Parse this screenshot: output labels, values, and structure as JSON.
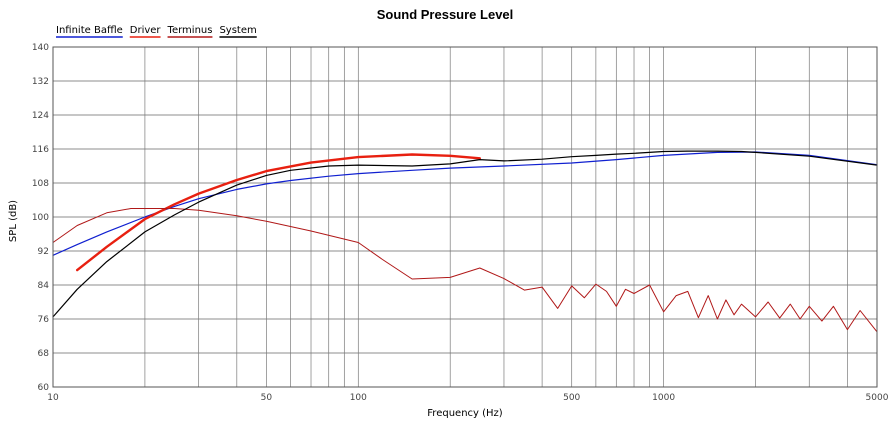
{
  "chart_data": {
    "type": "line",
    "title": "Sound Pressure Level",
    "xlabel": "Frequency (Hz)",
    "ylabel": "SPL (dB)",
    "x_scale": "log",
    "xlim": [
      10,
      5000
    ],
    "ylim": [
      60,
      140
    ],
    "grid": true,
    "legend_position": "top-left",
    "x_tick_labels": [
      "10",
      "50",
      "100",
      "500",
      "1000",
      "5000"
    ],
    "x_ticks": [
      10,
      50,
      100,
      500,
      1000,
      5000
    ],
    "x_grid": [
      20,
      30,
      40,
      50,
      60,
      70,
      80,
      90,
      100,
      200,
      300,
      400,
      500,
      600,
      700,
      800,
      900,
      1000,
      2000,
      3000,
      4000
    ],
    "y_ticks": [
      60,
      68,
      76,
      84,
      92,
      100,
      108,
      116,
      124,
      132,
      140
    ],
    "series": [
      {
        "name": "Infinite Baffle",
        "color": "#1020d0",
        "x": [
          10,
          12,
          15,
          20,
          25,
          30,
          40,
          50,
          60,
          80,
          100,
          150,
          200,
          300,
          500,
          700,
          1000,
          1500,
          2000,
          3000,
          5000
        ],
        "y": [
          91,
          93.5,
          96.5,
          100,
          102.5,
          104.3,
          106.5,
          107.8,
          108.6,
          109.6,
          110.2,
          111,
          111.5,
          112,
          112.7,
          113.5,
          114.5,
          115.2,
          115.3,
          114.5,
          112.3
        ]
      },
      {
        "name": "Driver",
        "color": "#e82010",
        "x": [
          12,
          15,
          20,
          25,
          30,
          40,
          50,
          70,
          100,
          150,
          200,
          250
        ],
        "y": [
          87.5,
          93,
          99.5,
          103,
          105.5,
          108.7,
          110.8,
          112.8,
          114.1,
          114.7,
          114.4,
          113.8
        ]
      },
      {
        "name": "Terminus",
        "color": "#b01818",
        "x": [
          10,
          12,
          15,
          18,
          20,
          25,
          30,
          40,
          50,
          70,
          100,
          120,
          150,
          200,
          250,
          300,
          350,
          400,
          450,
          500,
          550,
          600,
          650,
          700,
          750,
          800,
          900,
          1000,
          1100,
          1200,
          1300,
          1400,
          1500,
          1600,
          1700,
          1800,
          2000,
          2200,
          2400,
          2600,
          2800,
          3000,
          3300,
          3600,
          4000,
          4400,
          5000
        ],
        "y": [
          94,
          98,
          101,
          102,
          102,
          102,
          101.6,
          100.3,
          99,
          96.7,
          94,
          90,
          85.4,
          85.8,
          88,
          85.5,
          82.8,
          83.5,
          78.5,
          83.8,
          81,
          84.2,
          82.5,
          79,
          83,
          82,
          84,
          77.7,
          81.5,
          82.5,
          76.3,
          81.5,
          76,
          80.5,
          77,
          79.5,
          76.5,
          80,
          76.2,
          79.5,
          76,
          79,
          75.5,
          79,
          73.5,
          78,
          73
        ]
      },
      {
        "name": "System",
        "color": "#000000",
        "x": [
          10,
          12,
          15,
          20,
          25,
          30,
          40,
          50,
          60,
          80,
          100,
          150,
          200,
          250,
          300,
          400,
          500,
          600,
          700,
          800,
          1000,
          1200,
          1500,
          1800,
          2000,
          3000,
          5000
        ],
        "y": [
          76.5,
          83,
          89.5,
          96.5,
          100.5,
          103.5,
          107.5,
          109.8,
          111,
          112,
          112.2,
          112,
          112.5,
          113.5,
          113.2,
          113.6,
          114.2,
          114.5,
          114.8,
          115,
          115.4,
          115.5,
          115.5,
          115.4,
          115.2,
          114.3,
          112.2
        ]
      }
    ]
  }
}
